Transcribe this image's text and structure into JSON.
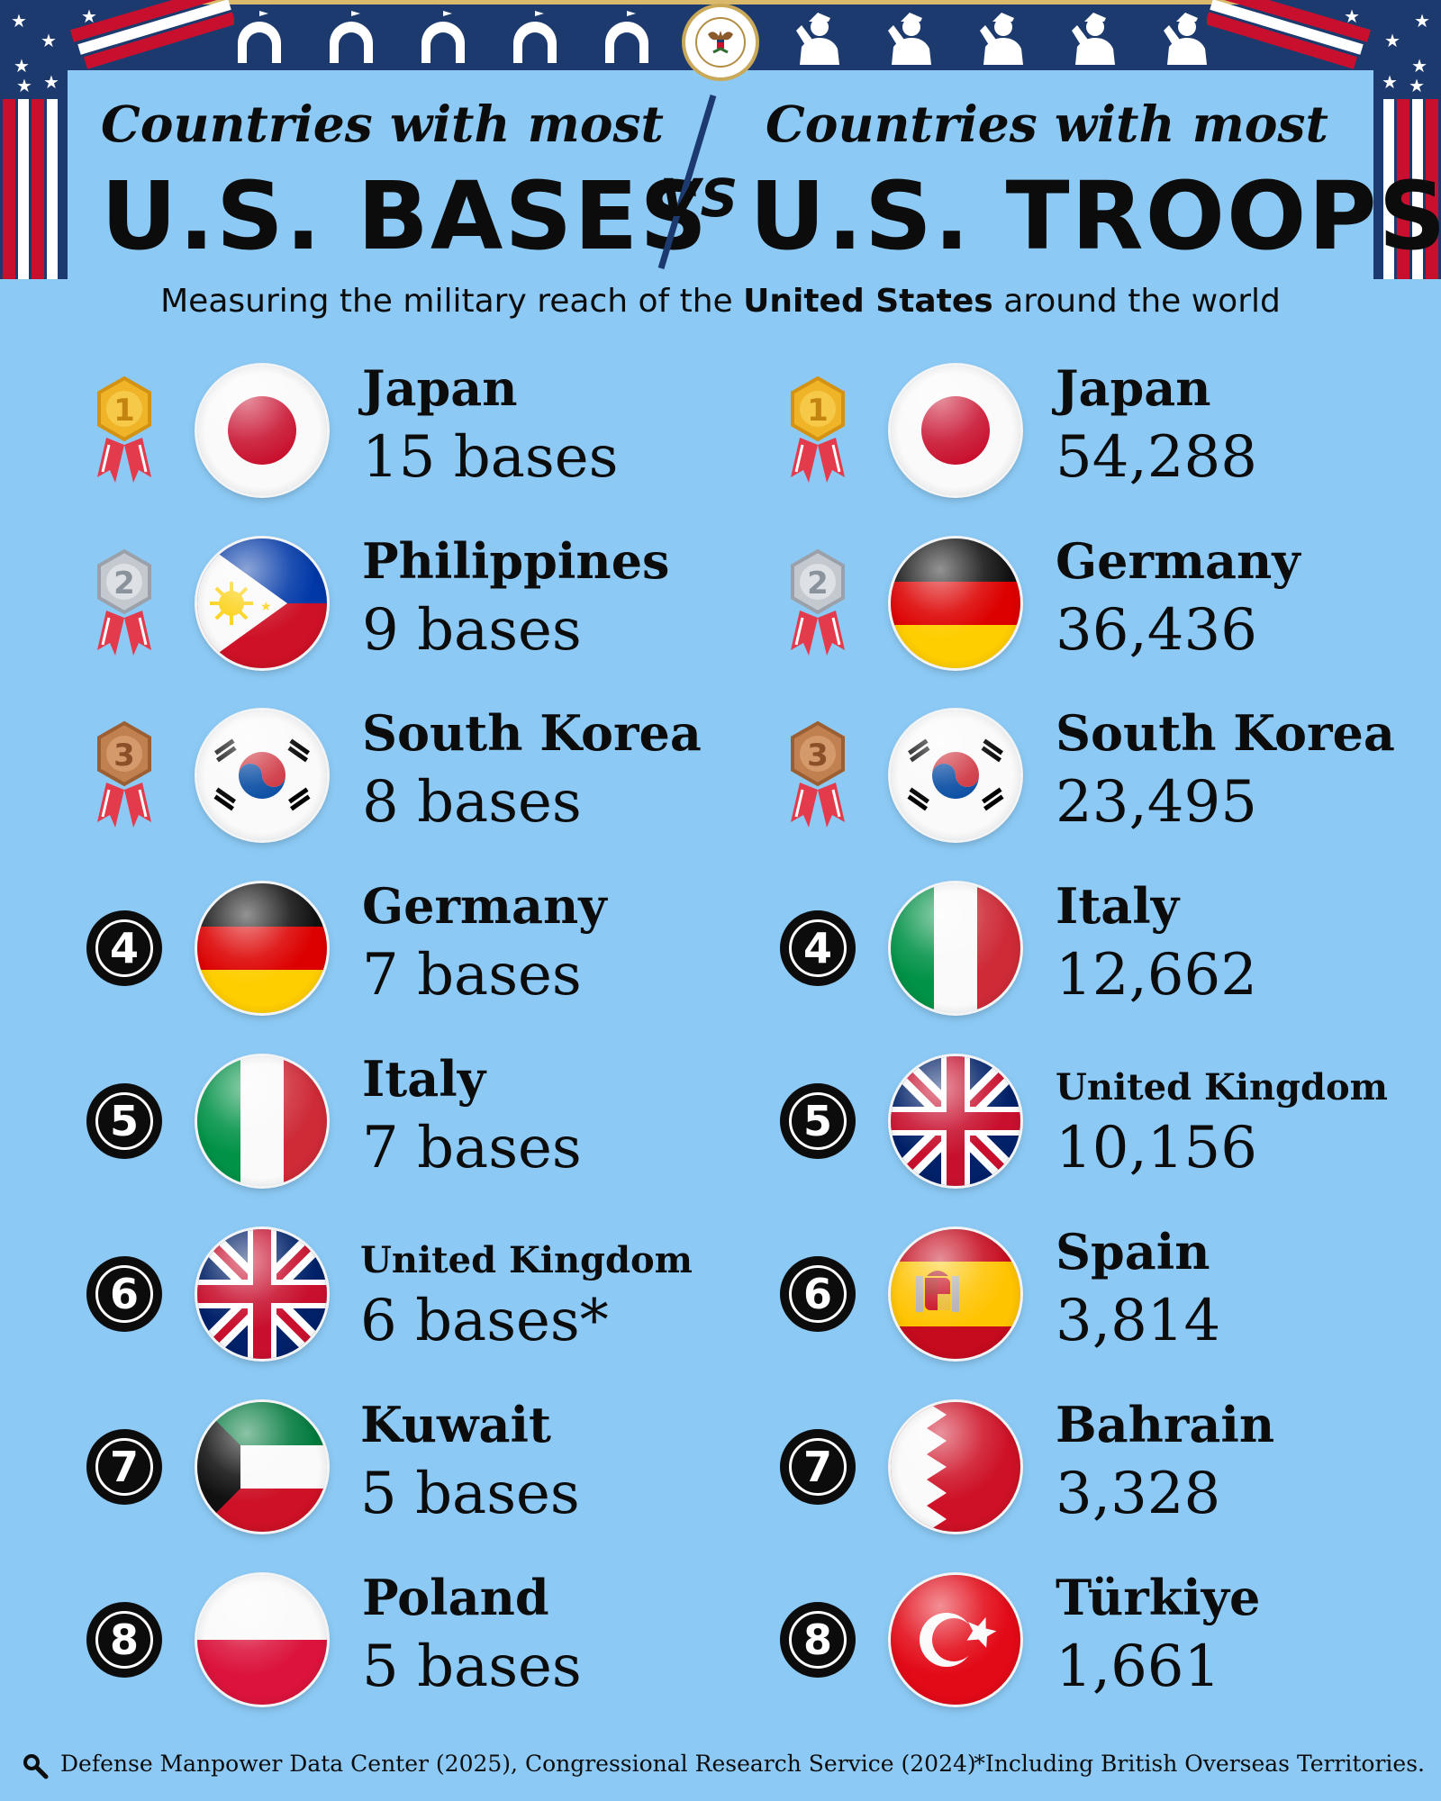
{
  "left": {
    "title_small": "Countries with most",
    "title_big": "U.S. BASES",
    "items": [
      {
        "rank": "1",
        "country": "Japan",
        "value": "15 bases"
      },
      {
        "rank": "2",
        "country": "Philippines",
        "value": "9 bases"
      },
      {
        "rank": "3",
        "country": "South Korea",
        "value": "8 bases"
      },
      {
        "rank": "4",
        "country": "Germany",
        "value": "7 bases"
      },
      {
        "rank": "5",
        "country": "Italy",
        "value": "7 bases"
      },
      {
        "rank": "6",
        "country": "United Kingdom",
        "value": "6 bases*"
      },
      {
        "rank": "7",
        "country": "Kuwait",
        "value": "5 bases"
      },
      {
        "rank": "8",
        "country": "Poland",
        "value": "5 bases"
      }
    ]
  },
  "vs": "VS",
  "right": {
    "title_small": "Countries with most",
    "title_big": "U.S. TROOPS",
    "items": [
      {
        "rank": "1",
        "country": "Japan",
        "value": "54,288"
      },
      {
        "rank": "2",
        "country": "Germany",
        "value": "36,436"
      },
      {
        "rank": "3",
        "country": "South Korea",
        "value": "23,495"
      },
      {
        "rank": "4",
        "country": "Italy",
        "value": "12,662"
      },
      {
        "rank": "5",
        "country": "United Kingdom",
        "value": "10,156"
      },
      {
        "rank": "6",
        "country": "Spain",
        "value": "3,814"
      },
      {
        "rank": "7",
        "country": "Bahrain",
        "value": "3,328"
      },
      {
        "rank": "8",
        "country": "Türkiye",
        "value": "1,661"
      }
    ]
  },
  "subtitle": {
    "before": "Measuring the military reach of the ",
    "bold": "United States",
    "after": " around the world"
  },
  "footer": {
    "source": "Defense Manpower Data Center (2025), Congressional Research Service (2024)",
    "note": "*Including British Overseas Territories.",
    "icon": "magnifier-icon"
  },
  "colors": {
    "background": "#8ccaf5",
    "navy": "#1c3a6e",
    "gold_medal": "#f0b429",
    "silver_medal": "#c4c9d0",
    "bronze_medal": "#c0804f"
  }
}
